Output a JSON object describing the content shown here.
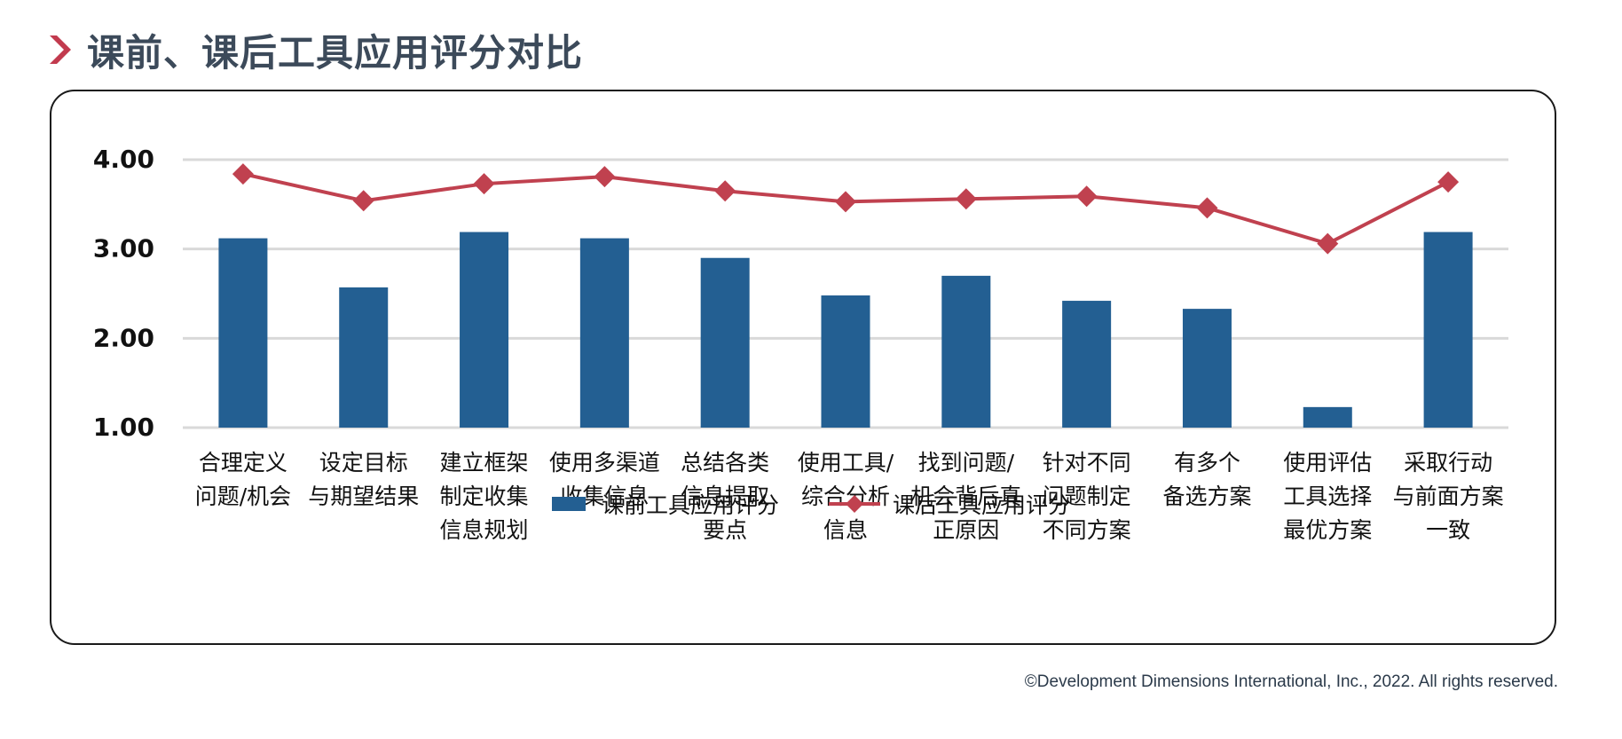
{
  "page": {
    "title": "课前、课后工具应用评分对比",
    "footer": "©Development Dimensions International, Inc., 2022. All rights reserved."
  },
  "colors": {
    "accent": "#c23a4e",
    "bar": "#235f92",
    "line": "#c0414f",
    "grid": "#d9d9d9",
    "title": "#3c4a5a"
  },
  "chart_data": {
    "type": "bar",
    "categories": [
      "合理定义\n问题/机会",
      "设定目标\n与期望结果",
      "建立框架\n制定收集\n信息规划",
      "使用多渠道\n收集信息",
      "总结各类\n信息提取\n要点",
      "使用工具/\n综合分析\n信息",
      "找到问题/\n机会背后真\n正原因",
      "针对不同\n问题制定\n不同方案",
      "有多个\n备选方案",
      "使用评估\n工具选择\n最优方案",
      "采取行动\n与前面方案\n一致"
    ],
    "series": [
      {
        "name": "课前工具应用评分",
        "type": "bar",
        "values": [
          3.12,
          2.57,
          3.19,
          3.12,
          2.9,
          2.48,
          2.7,
          2.42,
          2.33,
          1.23,
          3.19
        ]
      },
      {
        "name": "课后工具应用评分",
        "type": "line",
        "values": [
          3.84,
          3.54,
          3.73,
          3.81,
          3.65,
          3.53,
          3.56,
          3.59,
          3.46,
          3.06,
          3.75
        ]
      }
    ],
    "yticks": [
      "1.00",
      "2.00",
      "3.00",
      "4.00"
    ],
    "ylim": [
      1.0,
      4.0
    ],
    "grid": true,
    "legend": "bottom"
  }
}
